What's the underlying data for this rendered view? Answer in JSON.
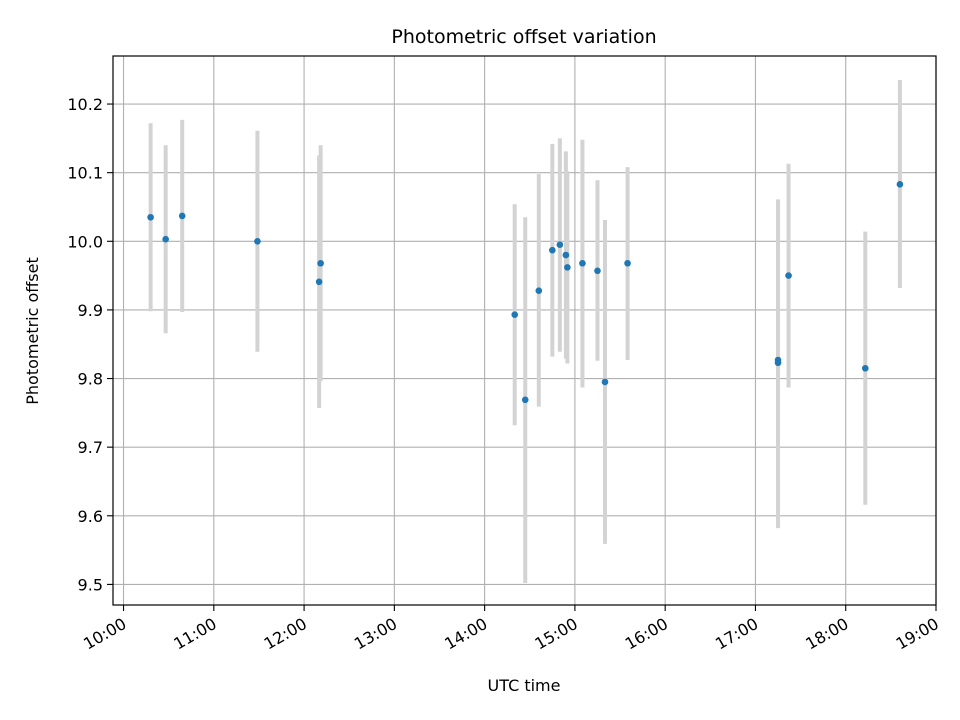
{
  "chart_data": {
    "type": "scatter",
    "title": "Photometric offset variation",
    "xlabel": "UTC time",
    "ylabel": "Photometric offset",
    "grid": true,
    "xticks": [
      "10:00",
      "11:00",
      "12:00",
      "13:00",
      "14:00",
      "15:00",
      "16:00",
      "17:00",
      "18:00",
      "19:00"
    ],
    "yticks": [
      "9.5",
      "9.6",
      "9.7",
      "9.8",
      "9.9",
      "10.0",
      "10.1",
      "10.2"
    ],
    "xlim": [
      "09:53",
      "19:00"
    ],
    "ylim": [
      9.47,
      10.27
    ],
    "colors": {
      "point": "#1f77b4",
      "errorbar": "#d3d3d3",
      "grid": "#b0b0b0"
    },
    "series": [
      {
        "points": [
          {
            "x": "10:18",
            "y": 10.035,
            "low": 9.898,
            "high": 10.172
          },
          {
            "x": "10:28",
            "y": 10.003,
            "low": 9.866,
            "high": 10.14
          },
          {
            "x": "10:39",
            "y": 10.037,
            "low": 9.897,
            "high": 10.177
          },
          {
            "x": "11:29",
            "y": 10.0,
            "low": 9.839,
            "high": 10.161
          },
          {
            "x": "12:10",
            "y": 9.941,
            "low": 9.757,
            "high": 10.125
          },
          {
            "x": "12:11",
            "y": 9.968,
            "low": 9.796,
            "high": 10.14
          },
          {
            "x": "14:20",
            "y": 9.893,
            "low": 9.732,
            "high": 10.054
          },
          {
            "x": "14:27",
            "y": 9.769,
            "low": 9.502,
            "high": 10.035
          },
          {
            "x": "14:36",
            "y": 9.928,
            "low": 9.759,
            "high": 10.098
          },
          {
            "x": "14:45",
            "y": 9.987,
            "low": 9.832,
            "high": 10.142
          },
          {
            "x": "14:50",
            "y": 9.995,
            "low": 9.839,
            "high": 10.15
          },
          {
            "x": "14:54",
            "y": 9.98,
            "low": 9.829,
            "high": 10.131
          },
          {
            "x": "14:55",
            "y": 9.962,
            "low": 9.822,
            "high": 10.102
          },
          {
            "x": "15:05",
            "y": 9.968,
            "low": 9.787,
            "high": 10.148
          },
          {
            "x": "15:15",
            "y": 9.957,
            "low": 9.826,
            "high": 10.089
          },
          {
            "x": "15:20",
            "y": 9.795,
            "low": 9.559,
            "high": 10.031
          },
          {
            "x": "15:35",
            "y": 9.968,
            "low": 9.827,
            "high": 10.108
          },
          {
            "x": "17:15",
            "y": 9.823,
            "low": 9.582,
            "high": 10.061
          },
          {
            "x": "17:15",
            "y": 9.827,
            "low": 9.65,
            "high": 10.005
          },
          {
            "x": "17:22",
            "y": 9.95,
            "low": 9.787,
            "high": 10.113
          },
          {
            "x": "18:13",
            "y": 9.815,
            "low": 9.616,
            "high": 10.014
          },
          {
            "x": "18:36",
            "y": 10.083,
            "low": 9.932,
            "high": 10.235
          }
        ]
      }
    ]
  }
}
